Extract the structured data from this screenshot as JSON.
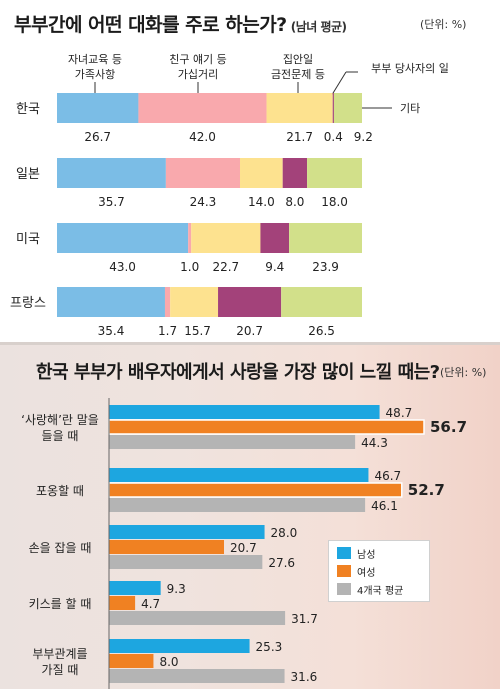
{
  "top": {
    "title": "부부간에 어떤 대화를 주로 하는가?",
    "subtitle": "(남녀 평균)",
    "unit": "(단위: %)"
  },
  "bottom": {
    "title": "한국 부부가 배우자에게서 사랑을 가장 많이 느낄 때는?",
    "unit": "(단위: %)",
    "legend": [
      "남성",
      "여성",
      "4개국 평균"
    ]
  },
  "chart_data": [
    {
      "type": "bar",
      "orientation": "horizontal",
      "stacked": true,
      "categories": [
        "한국",
        "일본",
        "미국",
        "프랑스"
      ],
      "series": [
        {
          "name": "자녀교육 등 가족사항",
          "color": "#7bbde6",
          "values": [
            26.7,
            35.7,
            43.0,
            35.4
          ]
        },
        {
          "name": "친구 얘기 등 가십거리",
          "color": "#f9a9ad",
          "values": [
            42.0,
            24.3,
            1.0,
            1.7
          ]
        },
        {
          "name": "집안일 금전문제 등",
          "color": "#fde28f",
          "values": [
            21.7,
            14.0,
            22.7,
            15.7
          ]
        },
        {
          "name": "부부 당사자의 일",
          "color": "#a3427a",
          "values": [
            0.4,
            8.0,
            9.4,
            20.7
          ]
        },
        {
          "name": "기타",
          "color": "#d2e08a",
          "values": [
            9.2,
            18.0,
            23.9,
            26.5
          ]
        }
      ],
      "value_labels": [
        [
          "26.7",
          "42.0",
          "21.7",
          "0.4",
          "9.2"
        ],
        [
          "35.7",
          "24.3",
          "14.0",
          "8.0",
          "18.0"
        ],
        [
          "43.0",
          "1.0",
          "22.7",
          "9.4",
          "23.9"
        ],
        [
          "35.4",
          "1.7",
          "15.7",
          "20.7",
          "26.5"
        ]
      ]
    },
    {
      "type": "bar",
      "orientation": "horizontal",
      "categories": [
        [
          "‘사랑해’란 말을",
          "들을 때"
        ],
        [
          "포옹할 때"
        ],
        [
          "손을 잡을 때"
        ],
        [
          "키스를 할 때"
        ],
        [
          "부부관계를",
          "가질 때"
        ]
      ],
      "series": [
        {
          "name": "남성",
          "color": "#1da6e0",
          "values": [
            48.7,
            46.7,
            28.0,
            9.3,
            25.3
          ]
        },
        {
          "name": "여성",
          "color": "#f08122",
          "values": [
            56.7,
            52.7,
            20.7,
            4.7,
            8.0
          ]
        },
        {
          "name": "4개국 평균",
          "color": "#b4b4b4",
          "values": [
            44.3,
            46.1,
            27.6,
            31.7,
            31.6
          ]
        }
      ],
      "value_labels": [
        [
          "48.7",
          "56.7",
          "44.3"
        ],
        [
          "46.7",
          "52.7",
          "46.1"
        ],
        [
          "28.0",
          "20.7",
          "27.6"
        ],
        [
          "9.3",
          "4.7",
          "31.7"
        ],
        [
          "25.3",
          "8.0",
          "31.6"
        ]
      ]
    }
  ]
}
